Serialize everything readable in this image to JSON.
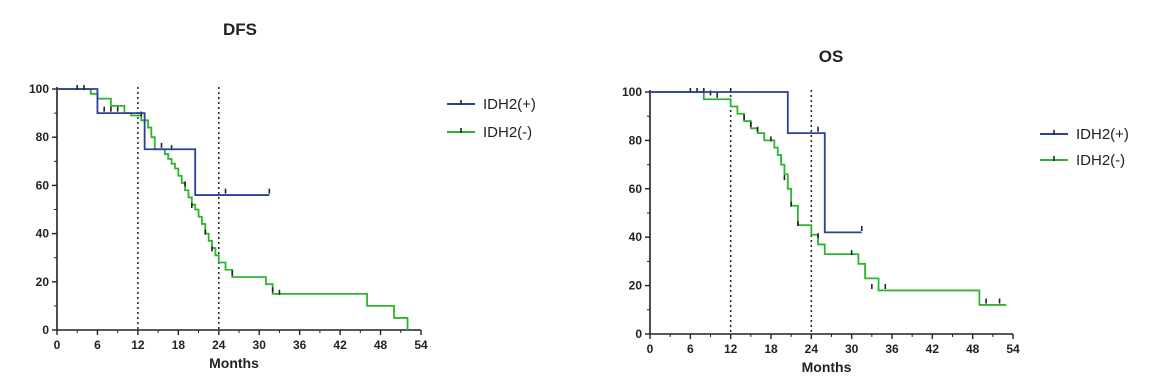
{
  "chart_data": [
    {
      "type": "line",
      "subtype": "kaplan-meier",
      "title": "DFS",
      "xlabel": "Months",
      "ylabel": "",
      "xlim": [
        0,
        54
      ],
      "ylim": [
        0,
        100
      ],
      "x_ticks": [
        0,
        6,
        12,
        18,
        24,
        30,
        36,
        42,
        48,
        54
      ],
      "y_ticks": [
        0,
        20,
        40,
        60,
        80,
        100
      ],
      "reference_lines_x": [
        12,
        24
      ],
      "legend_position": "right",
      "series": [
        {
          "name": "IDH2(+)",
          "color": "#2b3f9e",
          "steps": [
            [
              0,
              100
            ],
            [
              6,
              90
            ],
            [
              13,
              75
            ],
            [
              20.5,
              56
            ],
            [
              31.5,
              56
            ]
          ],
          "censored": [
            [
              3,
              100
            ],
            [
              4,
              100
            ],
            [
              25,
              57
            ],
            [
              31.5,
              57
            ]
          ]
        },
        {
          "name": "IDH2(-)",
          "color": "#2db62d",
          "steps": [
            [
              0,
              100
            ],
            [
              5,
              98
            ],
            [
              6,
              96
            ],
            [
              8,
              93
            ],
            [
              10,
              90
            ],
            [
              11,
              89
            ],
            [
              12.5,
              87
            ],
            [
              13.5,
              84
            ],
            [
              14,
              80
            ],
            [
              14.5,
              75
            ],
            [
              16,
              73
            ],
            [
              16.5,
              71
            ],
            [
              17,
              69
            ],
            [
              17.5,
              67
            ],
            [
              18,
              64
            ],
            [
              18.5,
              61
            ],
            [
              19,
              58
            ],
            [
              19.5,
              55
            ],
            [
              20,
              52
            ],
            [
              20.5,
              50
            ],
            [
              21,
              47
            ],
            [
              21.5,
              44
            ],
            [
              22,
              40
            ],
            [
              22.5,
              37
            ],
            [
              23,
              34
            ],
            [
              23.5,
              31
            ],
            [
              24,
              28
            ],
            [
              25,
              25
            ],
            [
              26,
              22
            ],
            [
              31,
              19
            ],
            [
              32,
              15
            ],
            [
              46,
              10
            ],
            [
              50,
              5
            ],
            [
              52,
              0
            ]
          ],
          "censored": [
            [
              7,
              91
            ],
            [
              8,
              91
            ],
            [
              9,
              91
            ],
            [
              12.5,
              89
            ],
            [
              15.5,
              76
            ],
            [
              17,
              75
            ],
            [
              19,
              60
            ],
            [
              20,
              51
            ],
            [
              22,
              40
            ],
            [
              23,
              33
            ],
            [
              26,
              23
            ],
            [
              32,
              16
            ],
            [
              33,
              15
            ]
          ]
        }
      ]
    },
    {
      "type": "line",
      "subtype": "kaplan-meier",
      "title": "OS",
      "xlabel": "Months",
      "ylabel": "",
      "xlim": [
        0,
        54
      ],
      "ylim": [
        0,
        100
      ],
      "x_ticks": [
        0,
        6,
        12,
        18,
        24,
        30,
        36,
        42,
        48,
        54
      ],
      "y_ticks": [
        0,
        20,
        40,
        60,
        80,
        100
      ],
      "reference_lines_x": [
        12,
        24
      ],
      "legend_position": "right",
      "series": [
        {
          "name": "IDH2(+)",
          "color": "#2b3f9e",
          "steps": [
            [
              0,
              100
            ],
            [
              20.5,
              83
            ],
            [
              26,
              42
            ],
            [
              31.5,
              42
            ]
          ],
          "censored": [
            [
              25,
              84
            ],
            [
              31.5,
              43
            ]
          ]
        },
        {
          "name": "IDH2(-)",
          "color": "#2db62d",
          "steps": [
            [
              0,
              100
            ],
            [
              8,
              97
            ],
            [
              12,
              94
            ],
            [
              13,
              91
            ],
            [
              14,
              88
            ],
            [
              15,
              85
            ],
            [
              16,
              83
            ],
            [
              17,
              80
            ],
            [
              18.5,
              77
            ],
            [
              19,
              74
            ],
            [
              19.5,
              70
            ],
            [
              20,
              66
            ],
            [
              20.5,
              60
            ],
            [
              21,
              53
            ],
            [
              22,
              45
            ],
            [
              24,
              41
            ],
            [
              25,
              37
            ],
            [
              26,
              33
            ],
            [
              31,
              29
            ],
            [
              32,
              23
            ],
            [
              34,
              18
            ],
            [
              49,
              12
            ],
            [
              53,
              12
            ]
          ],
          "censored": [
            [
              6,
              100
            ],
            [
              7,
              100
            ],
            [
              8,
              100
            ],
            [
              9,
              99
            ],
            [
              10,
              98
            ],
            [
              12,
              100
            ],
            [
              14,
              89
            ],
            [
              15,
              86
            ],
            [
              16,
              84
            ],
            [
              18,
              80
            ],
            [
              20,
              64
            ],
            [
              21,
              53
            ],
            [
              22,
              45
            ],
            [
              25,
              40
            ],
            [
              30,
              33
            ],
            [
              33,
              19
            ],
            [
              35,
              19
            ],
            [
              50,
              13
            ],
            [
              52,
              13
            ]
          ]
        }
      ]
    }
  ]
}
